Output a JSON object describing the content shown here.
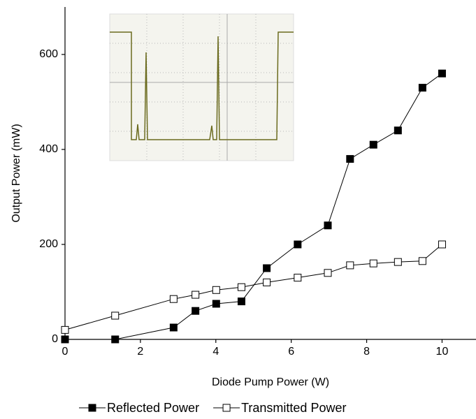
{
  "chart_data": {
    "type": "line",
    "x_label": "Diode Pump Power (W)",
    "y_label": "Output  Power (mW)",
    "x": [
      0,
      1.33,
      2.88,
      3.46,
      4.01,
      4.68,
      5.35,
      6.17,
      6.97,
      7.56,
      8.18,
      8.83,
      9.48,
      10
    ],
    "series": [
      {
        "name": "Reflected Power",
        "color": "#000000",
        "marker": "filled-square",
        "values": [
          0,
          0,
          25,
          60,
          75,
          80,
          150,
          200,
          240,
          380,
          410,
          440,
          530,
          560
        ]
      },
      {
        "name": "Transmitted Power",
        "color": "#000000",
        "marker": "open-square",
        "values": [
          20,
          50,
          85,
          94,
          104,
          110,
          120,
          130,
          140,
          156,
          160,
          163,
          165,
          200
        ]
      }
    ],
    "xlim": [
      0,
      10.9
    ],
    "ylim": [
      0,
      700
    ],
    "xticks": [
      0,
      2,
      4,
      6,
      8,
      10
    ],
    "yticks": [
      0,
      200,
      400,
      600
    ],
    "grid": false,
    "legend": "bottom"
  }
}
